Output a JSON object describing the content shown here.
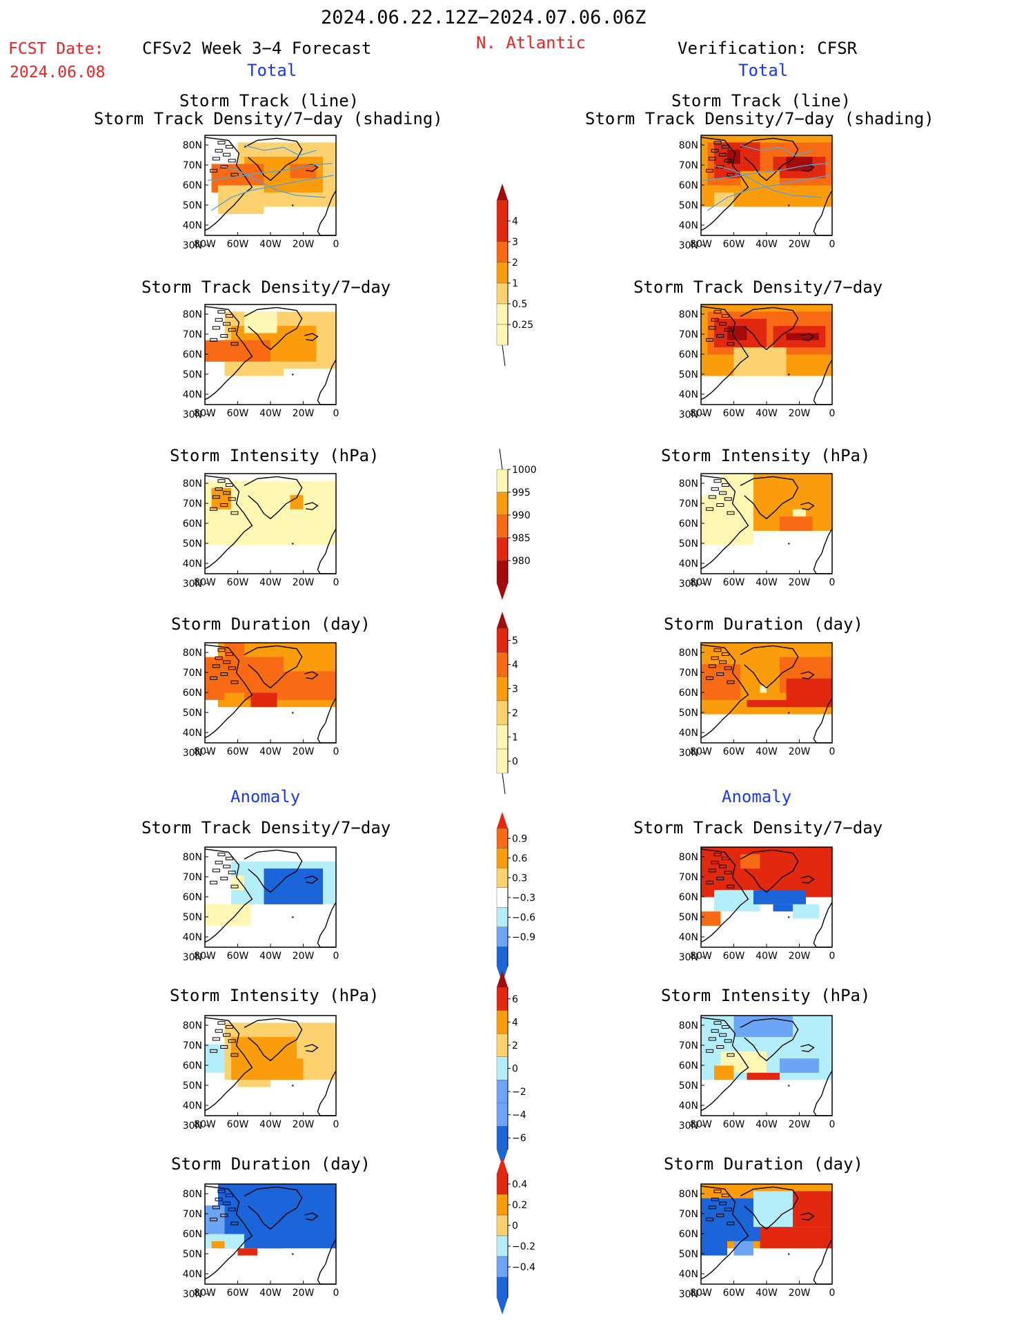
{
  "header": {
    "period": "2024.06.22.12Z−2024.07.06.06Z",
    "region": "N. Atlantic",
    "fcst_label": "FCST Date:",
    "fcst_date": "2024.06.08",
    "forecast_title": "CFSv2 Week 3−4 Forecast",
    "verification_title": "Verification: CFSR",
    "total_label_left": "Total",
    "total_label_right": "Total",
    "anomaly_label_left": "Anomaly",
    "anomaly_label_right": "Anomaly"
  },
  "panels": {
    "track_line": "Storm Track (line)",
    "track_shading": "Storm Track Density/7−day (shading)",
    "density": "Storm Track Density/7−day",
    "intensity": "Storm Intensity (hPa)",
    "duration": "Storm Duration (day)"
  },
  "axes": {
    "lat_labels": [
      "80N",
      "70N",
      "60N",
      "50N",
      "40N",
      "30N"
    ],
    "lon_labels": [
      "80W",
      "60W",
      "40W",
      "20W",
      "0"
    ]
  },
  "colorbars": {
    "density_total": [
      "4",
      "3",
      "2",
      "1",
      "0.5",
      "0.25"
    ],
    "intensity_total": [
      "1000",
      "995",
      "990",
      "985",
      "980"
    ],
    "duration_total": [
      "5",
      "4",
      "3",
      "2",
      "1",
      "0"
    ],
    "density_anom": [
      "0.9",
      "0.6",
      "0.3",
      "−0.3",
      "−0.6",
      "−0.9"
    ],
    "intensity_anom": [
      "6",
      "4",
      "2",
      "0",
      "−2",
      "−4",
      "−6"
    ],
    "duration_anom": [
      "0.4",
      "0.2",
      "0",
      "−0.2",
      "−0.4"
    ]
  },
  "colors": {
    "pale_yellow": "#fff7b3",
    "light_orange": "#fdd26e",
    "orange": "#fa9c0c",
    "dark_orange": "#f96a14",
    "red": "#e32810",
    "dark_red": "#a50a0a",
    "light_blue": "#b4eefa",
    "mid_blue": "#6ca5f5",
    "blue": "#1c64d9",
    "track_line": "#55a4d9",
    "label_red": "#ee2222",
    "label_blue": "#1a38f0"
  },
  "chart_data": [
    {
      "type": "heatmap",
      "panel": "forecast_total_track",
      "title": "Storm Track (line) / Storm Track Density/7-day (shading)",
      "xlim": [
        "80W",
        "0"
      ],
      "ylim": [
        "30N",
        "80N"
      ]
    },
    {
      "type": "heatmap",
      "panel": "verification_total_track",
      "title": "Storm Track (line) / Storm Track Density/7-day (shading)",
      "xlim": [
        "80W",
        "0"
      ],
      "ylim": [
        "30N",
        "80N"
      ]
    },
    {
      "type": "heatmap",
      "panel": "forecast_total_density",
      "title": "Storm Track Density/7-day",
      "colorbar": [
        0.25,
        0.5,
        1,
        2,
        3,
        4
      ]
    },
    {
      "type": "heatmap",
      "panel": "verification_total_density",
      "title": "Storm Track Density/7-day",
      "colorbar": [
        0.25,
        0.5,
        1,
        2,
        3,
        4
      ]
    },
    {
      "type": "heatmap",
      "panel": "forecast_total_intensity",
      "title": "Storm Intensity (hPa)",
      "colorbar": [
        980,
        985,
        990,
        995,
        1000
      ]
    },
    {
      "type": "heatmap",
      "panel": "verification_total_intensity",
      "title": "Storm Intensity (hPa)",
      "colorbar": [
        980,
        985,
        990,
        995,
        1000
      ]
    },
    {
      "type": "heatmap",
      "panel": "forecast_total_duration",
      "title": "Storm Duration (day)",
      "colorbar": [
        0,
        1,
        2,
        3,
        4,
        5
      ]
    },
    {
      "type": "heatmap",
      "panel": "verification_total_duration",
      "title": "Storm Duration (day)",
      "colorbar": [
        0,
        1,
        2,
        3,
        4,
        5
      ]
    },
    {
      "type": "heatmap",
      "panel": "forecast_anomaly_density",
      "title": "Storm Track Density/7-day",
      "colorbar": [
        -0.9,
        -0.6,
        -0.3,
        0.3,
        0.6,
        0.9
      ]
    },
    {
      "type": "heatmap",
      "panel": "verification_anomaly_density",
      "title": "Storm Track Density/7-day",
      "colorbar": [
        -0.9,
        -0.6,
        -0.3,
        0.3,
        0.6,
        0.9
      ]
    },
    {
      "type": "heatmap",
      "panel": "forecast_anomaly_intensity",
      "title": "Storm Intensity (hPa)",
      "colorbar": [
        -6,
        -4,
        -2,
        0,
        2,
        4,
        6
      ]
    },
    {
      "type": "heatmap",
      "panel": "verification_anomaly_intensity",
      "title": "Storm Intensity (hPa)",
      "colorbar": [
        -6,
        -4,
        -2,
        0,
        2,
        4,
        6
      ]
    },
    {
      "type": "heatmap",
      "panel": "forecast_anomaly_duration",
      "title": "Storm Duration (day)",
      "colorbar": [
        -0.4,
        -0.2,
        0,
        0.2,
        0.4
      ]
    },
    {
      "type": "heatmap",
      "panel": "verification_anomaly_duration",
      "title": "Storm Duration (day)",
      "colorbar": [
        -0.4,
        -0.2,
        0,
        0.2,
        0.4
      ]
    }
  ]
}
